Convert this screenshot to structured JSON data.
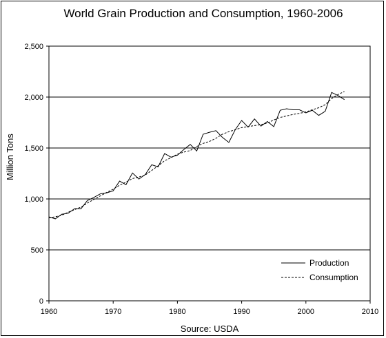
{
  "chart_data": {
    "type": "line",
    "title": "World Grain Production and Consumption, 1960-2006",
    "xlabel": "",
    "ylabel": "Million Tons",
    "source": "Source: USDA",
    "xlim": [
      1960,
      2010
    ],
    "ylim": [
      0,
      2500
    ],
    "x_ticks": [
      1960,
      1970,
      1980,
      1990,
      2000,
      2010
    ],
    "y_ticks": [
      0,
      500,
      1000,
      1500,
      2000,
      2500
    ],
    "y_tick_labels": [
      "0",
      "500",
      "1,000",
      "1,500",
      "2,000",
      "2,500"
    ],
    "grid": "horizontal",
    "legend_position": "bottom-right",
    "x": [
      1960,
      1961,
      1962,
      1963,
      1964,
      1965,
      1966,
      1967,
      1968,
      1969,
      1970,
      1971,
      1972,
      1973,
      1974,
      1975,
      1976,
      1977,
      1978,
      1979,
      1980,
      1981,
      1982,
      1983,
      1984,
      1985,
      1986,
      1987,
      1988,
      1989,
      1990,
      1991,
      1992,
      1993,
      1994,
      1995,
      1996,
      1997,
      1998,
      1999,
      2000,
      2001,
      2002,
      2003,
      2004,
      2005,
      2006
    ],
    "series": [
      {
        "name": "Production",
        "style": "solid",
        "values": [
          824,
          805,
          850,
          860,
          905,
          905,
          985,
          1015,
          1050,
          1060,
          1080,
          1175,
          1140,
          1255,
          1195,
          1240,
          1335,
          1315,
          1445,
          1410,
          1430,
          1485,
          1535,
          1470,
          1635,
          1655,
          1670,
          1605,
          1555,
          1680,
          1770,
          1705,
          1785,
          1715,
          1760,
          1710,
          1870,
          1885,
          1875,
          1875,
          1845,
          1870,
          1820,
          1860,
          2045,
          2015,
          1975
        ]
      },
      {
        "name": "Consumption",
        "style": "dashed",
        "values": [
          815,
          825,
          840,
          870,
          895,
          920,
          960,
          995,
          1030,
          1065,
          1095,
          1135,
          1165,
          1200,
          1215,
          1235,
          1280,
          1325,
          1375,
          1405,
          1440,
          1460,
          1475,
          1515,
          1545,
          1565,
          1595,
          1635,
          1660,
          1680,
          1700,
          1710,
          1720,
          1730,
          1745,
          1775,
          1800,
          1815,
          1830,
          1840,
          1855,
          1875,
          1895,
          1925,
          1985,
          2025,
          2055
        ]
      }
    ]
  }
}
